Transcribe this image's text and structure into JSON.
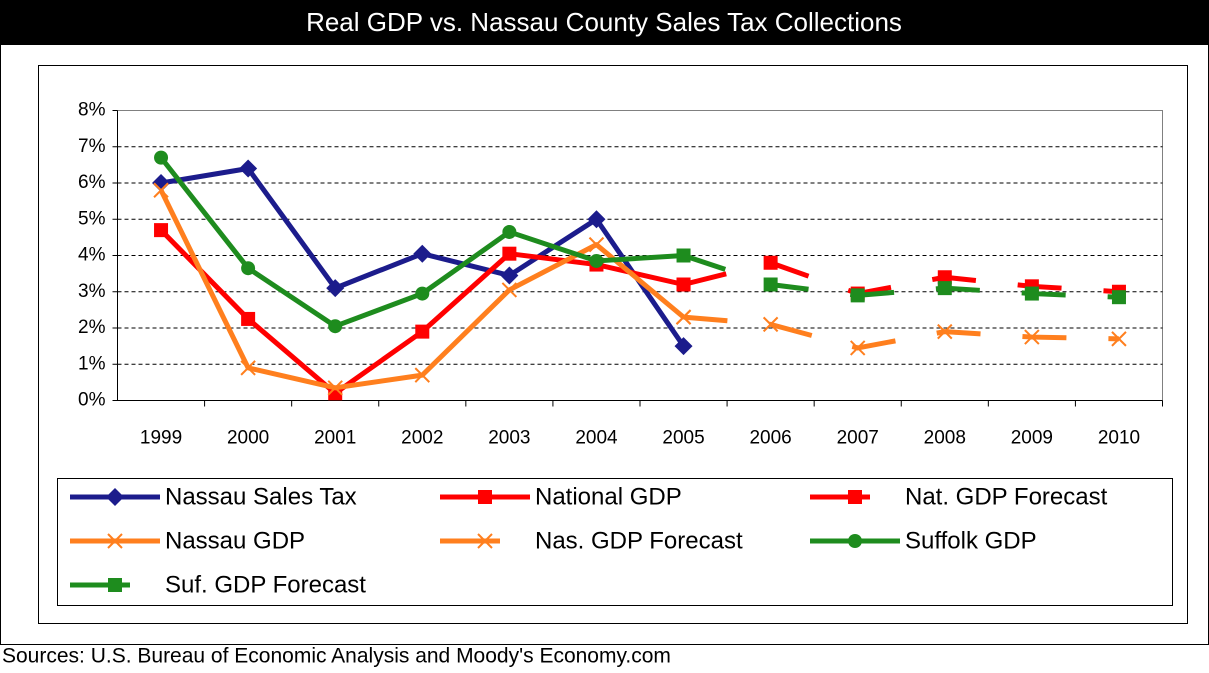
{
  "chart_data": {
    "type": "line",
    "title": "Real GDP vs. Nassau County Sales Tax Collections",
    "source": "Sources: U.S. Bureau of Economic Analysis and Moody's Economy.com",
    "categories": [
      "1999",
      "2000",
      "2001",
      "2002",
      "2003",
      "2004",
      "2005",
      "2006",
      "2007",
      "2008",
      "2009",
      "2010"
    ],
    "ylim": [
      0,
      8
    ],
    "yticks": [
      {
        "value": 0,
        "label": "0%"
      },
      {
        "value": 1,
        "label": "1%"
      },
      {
        "value": 2,
        "label": "2%"
      },
      {
        "value": 3,
        "label": "3%"
      },
      {
        "value": 4,
        "label": "4%"
      },
      {
        "value": 5,
        "label": "5%"
      },
      {
        "value": 6,
        "label": "6%"
      },
      {
        "value": 7,
        "label": "7%"
      },
      {
        "value": 8,
        "label": "8%"
      }
    ],
    "grid": true,
    "legend": "bottom",
    "series": [
      {
        "name": "Nassau Sales Tax",
        "color": "#1c1c8c",
        "marker": "diamond",
        "dashed": false,
        "values": [
          6.0,
          6.4,
          3.1,
          4.05,
          3.45,
          5.0,
          1.5,
          null,
          null,
          null,
          null,
          null
        ]
      },
      {
        "name": "National GDP",
        "color": "#ff0000",
        "marker": "square",
        "dashed": false,
        "values": [
          4.7,
          2.25,
          0.2,
          1.9,
          4.05,
          3.75,
          3.2,
          null,
          null,
          null,
          null,
          null
        ]
      },
      {
        "name": "Nat. GDP Forecast",
        "color": "#ff0000",
        "marker": "square",
        "dashed": true,
        "values": [
          null,
          null,
          null,
          null,
          null,
          null,
          3.2,
          3.8,
          2.95,
          3.4,
          3.15,
          3.0
        ]
      },
      {
        "name": "Nassau GDP",
        "color": "#ff7f1e",
        "marker": "x",
        "dashed": false,
        "values": [
          5.8,
          0.9,
          0.35,
          0.7,
          3.05,
          4.3,
          2.3,
          null,
          null,
          null,
          null,
          null
        ]
      },
      {
        "name": "Nas. GDP Forecast",
        "color": "#ff7f1e",
        "marker": "x",
        "dashed": true,
        "values": [
          null,
          null,
          null,
          null,
          null,
          null,
          2.3,
          2.1,
          1.45,
          1.9,
          1.75,
          1.7
        ]
      },
      {
        "name": "Suffolk GDP",
        "color": "#1e8c1e",
        "marker": "circle",
        "dashed": false,
        "values": [
          6.7,
          3.65,
          2.05,
          2.95,
          4.65,
          3.85,
          4.0,
          null,
          null,
          null,
          null,
          null
        ]
      },
      {
        "name": "Suf. GDP Forecast",
        "color": "#1e8c1e",
        "marker": "square",
        "dashed": true,
        "values": [
          null,
          null,
          null,
          null,
          null,
          null,
          4.0,
          3.2,
          2.9,
          3.1,
          2.95,
          2.85
        ]
      }
    ]
  }
}
